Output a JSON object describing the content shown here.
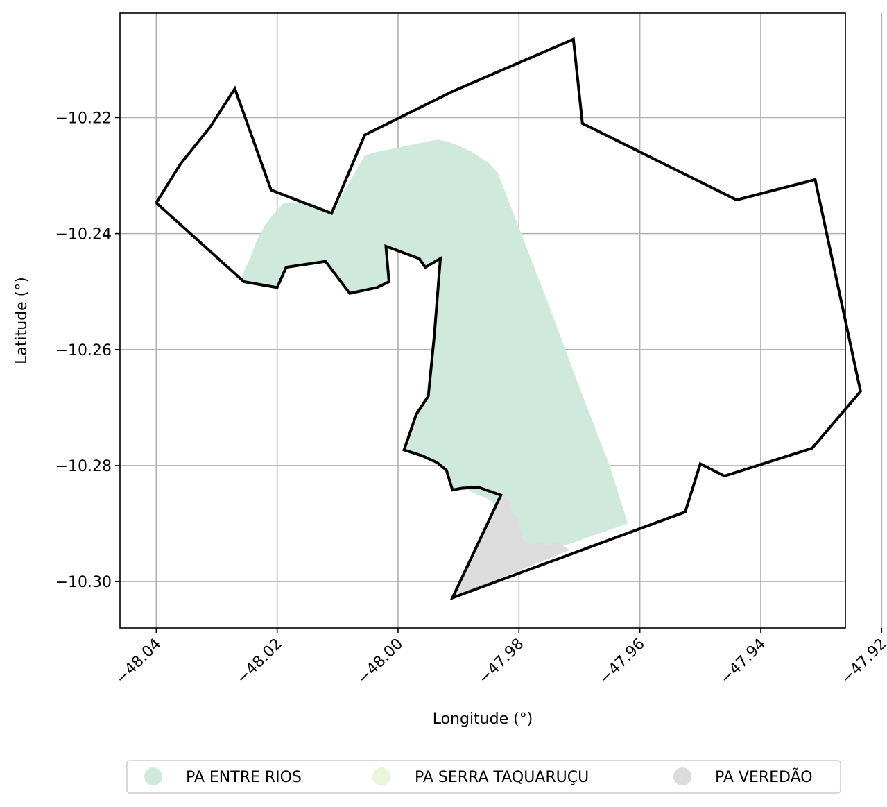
{
  "chart_data": {
    "type": "map",
    "xlabel": "Longitude (°)",
    "ylabel": "Latitude (°)",
    "xlim": [
      -48.046,
      -47.926
    ],
    "ylim": [
      -10.308,
      -10.202
    ],
    "grid": true,
    "legend_placement": "bottom-center",
    "x_ticks": [
      {
        "value": -48.04,
        "label": "−48.04"
      },
      {
        "value": -48.02,
        "label": "−48.02"
      },
      {
        "value": -48.0,
        "label": "−48.00"
      },
      {
        "value": -47.98,
        "label": "−47.98"
      },
      {
        "value": -47.96,
        "label": "−47.96"
      },
      {
        "value": -47.94,
        "label": "−47.94"
      },
      {
        "value": -47.92,
        "label": "−47.92"
      }
    ],
    "y_ticks": [
      {
        "value": -10.22,
        "label": "−10.22"
      },
      {
        "value": -10.24,
        "label": "−10.24"
      },
      {
        "value": -10.26,
        "label": "−10.26"
      },
      {
        "value": -10.28,
        "label": "−10.28"
      },
      {
        "value": -10.3,
        "label": "−10.30"
      }
    ],
    "layers": [
      {
        "name": "PA ENTRE RIOS",
        "color": "#cfeadd",
        "polygon": [
          [
            -48.0255,
            -10.2465
          ],
          [
            -48.0245,
            -10.2443
          ],
          [
            -48.0235,
            -10.2415
          ],
          [
            -48.022,
            -10.2385
          ],
          [
            -48.0205,
            -10.2365
          ],
          [
            -48.019,
            -10.2348
          ],
          [
            -48.016,
            -10.2345
          ],
          [
            -48.011,
            -10.2365
          ],
          [
            -48.0055,
            -10.2265
          ],
          [
            -48.003,
            -10.2258
          ],
          [
            -48.0,
            -10.2252
          ],
          [
            -47.996,
            -10.2243
          ],
          [
            -47.9935,
            -10.2238
          ],
          [
            -47.9915,
            -10.2242
          ],
          [
            -47.988,
            -10.2258
          ],
          [
            -47.985,
            -10.2278
          ],
          [
            -47.9835,
            -10.2295
          ],
          [
            -47.98,
            -10.239
          ],
          [
            -47.975,
            -10.2525
          ],
          [
            -47.97,
            -10.2665
          ],
          [
            -47.965,
            -10.28
          ],
          [
            -47.962,
            -10.29
          ],
          [
            -47.978,
            -10.2958
          ],
          [
            -47.979,
            -10.2952
          ],
          [
            -47.9805,
            -10.2938
          ],
          [
            -47.9815,
            -10.2932
          ],
          [
            -47.9825,
            -10.2928
          ],
          [
            -47.983,
            -10.293
          ],
          [
            -47.9835,
            -10.2912
          ],
          [
            -47.983,
            -10.289
          ],
          [
            -47.9835,
            -10.2875
          ],
          [
            -47.9845,
            -10.2862
          ],
          [
            -47.9855,
            -10.2855
          ],
          [
            -47.9868,
            -10.2851
          ],
          [
            -47.9885,
            -10.2841
          ],
          [
            -47.9895,
            -10.2843
          ],
          [
            -47.991,
            -10.2842
          ],
          [
            -47.992,
            -10.2808
          ],
          [
            -47.9935,
            -10.2795
          ],
          [
            -47.996,
            -10.2783
          ],
          [
            -47.999,
            -10.2773
          ],
          [
            -47.997,
            -10.2712
          ],
          [
            -47.995,
            -10.268
          ],
          [
            -47.994,
            -10.2575
          ],
          [
            -47.993,
            -10.2443
          ],
          [
            -47.9955,
            -10.2458
          ],
          [
            -47.9965,
            -10.2443
          ],
          [
            -48.002,
            -10.2422
          ],
          [
            -48.0015,
            -10.2483
          ],
          [
            -48.0035,
            -10.2493
          ],
          [
            -48.008,
            -10.2503
          ],
          [
            -48.012,
            -10.2448
          ],
          [
            -48.0185,
            -10.2458
          ],
          [
            -48.02,
            -10.2493
          ],
          [
            -48.026,
            -10.2483
          ]
        ]
      },
      {
        "name": "PA SERRA TAQUARUÇU",
        "color": "#eaf6d8",
        "polygon": []
      },
      {
        "name": "PA VEREDÃO",
        "color": "#dcdcdc",
        "polygon": [
          [
            -47.983,
            -10.2851
          ],
          [
            -47.9815,
            -10.2862
          ],
          [
            -47.981,
            -10.2882
          ],
          [
            -47.9805,
            -10.2885
          ],
          [
            -47.98,
            -10.2895
          ],
          [
            -47.9795,
            -10.2927
          ],
          [
            -47.978,
            -10.2937
          ],
          [
            -47.9765,
            -10.2932
          ],
          [
            -47.9755,
            -10.2938
          ],
          [
            -47.974,
            -10.2932
          ],
          [
            -47.9715,
            -10.2945
          ],
          [
            -47.991,
            -10.3028
          ]
        ]
      }
    ],
    "boundary": [
      [
        -48.04,
        -10.2347
      ],
      [
        -48.036,
        -10.228
      ],
      [
        -48.031,
        -10.2215
      ],
      [
        -48.027,
        -10.215
      ],
      [
        -48.021,
        -10.2325
      ],
      [
        -48.016,
        -10.2345
      ],
      [
        -48.011,
        -10.2365
      ],
      [
        -48.0055,
        -10.223
      ],
      [
        -47.991,
        -10.2155
      ],
      [
        -47.971,
        -10.2065
      ],
      [
        -47.9695,
        -10.221
      ],
      [
        -47.944,
        -10.2342
      ],
      [
        -47.931,
        -10.2307
      ],
      [
        -47.9235,
        -10.2672
      ],
      [
        -47.9315,
        -10.277
      ],
      [
        -47.946,
        -10.2818
      ],
      [
        -47.95,
        -10.2797
      ],
      [
        -47.9525,
        -10.288
      ],
      [
        -47.991,
        -10.3028
      ],
      [
        -47.983,
        -10.2851
      ],
      [
        -47.9868,
        -10.2837
      ],
      [
        -47.9895,
        -10.2839
      ],
      [
        -47.991,
        -10.2842
      ],
      [
        -47.992,
        -10.2808
      ],
      [
        -47.9935,
        -10.2795
      ],
      [
        -47.996,
        -10.2783
      ],
      [
        -47.999,
        -10.2773
      ],
      [
        -47.997,
        -10.2712
      ],
      [
        -47.995,
        -10.268
      ],
      [
        -47.994,
        -10.2575
      ],
      [
        -47.993,
        -10.2443
      ],
      [
        -47.9955,
        -10.2458
      ],
      [
        -47.9965,
        -10.2443
      ],
      [
        -48.002,
        -10.2422
      ],
      [
        -48.0015,
        -10.2483
      ],
      [
        -48.0035,
        -10.2493
      ],
      [
        -48.008,
        -10.2503
      ],
      [
        -48.012,
        -10.2448
      ],
      [
        -48.0185,
        -10.2458
      ],
      [
        -48.02,
        -10.2493
      ],
      [
        -48.0255,
        -10.2483
      ],
      [
        -48.04,
        -10.2347
      ]
    ]
  },
  "legend": {
    "items": [
      {
        "label": "PA ENTRE RIOS",
        "color": "#cfeadd"
      },
      {
        "label": "PA SERRA TAQUARUÇU",
        "color": "#eaf6d8"
      },
      {
        "label": "PA VEREDÃO",
        "color": "#dcdcdc"
      }
    ]
  }
}
